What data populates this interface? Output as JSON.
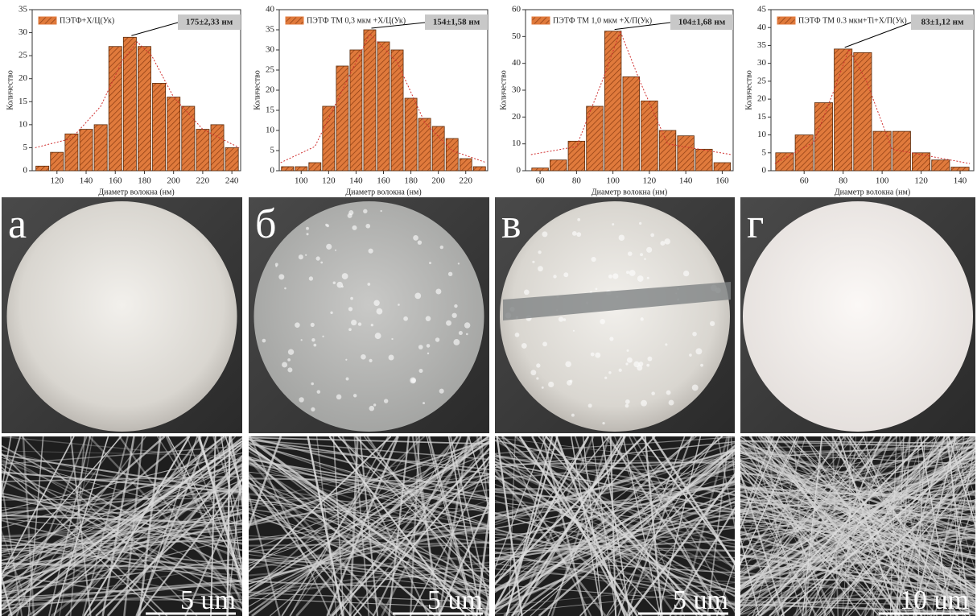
{
  "chart_data": [
    {
      "type": "histogram",
      "x_label": "Диаметр волокна (нм)",
      "y_label": "Количество",
      "annotation": "175±2,33 нм",
      "bins": [
        105,
        115,
        125,
        135,
        145,
        155,
        165,
        175,
        185,
        195,
        205,
        215,
        225,
        235,
        245
      ],
      "series": [
        {
          "name": "ПЭТФ+Х/Ц(Ук)",
          "color": "#e07a3c",
          "values": [
            1,
            4,
            8,
            9,
            10,
            27,
            29,
            27,
            19,
            16,
            14,
            9,
            10,
            5
          ]
        }
      ],
      "fit": {
        "color": "#d03030",
        "x": [
          105,
          130,
          150,
          165,
          175,
          185,
          200,
          220,
          245
        ],
        "y": [
          5,
          7,
          14,
          24,
          28,
          25,
          16,
          9,
          5
        ]
      },
      "xlim": [
        103,
        246
      ],
      "xticks": [
        120,
        140,
        160,
        180,
        200,
        220,
        240
      ],
      "ylim": [
        0,
        35
      ],
      "yticks": [
        0,
        5,
        10,
        15,
        20,
        25,
        30,
        35
      ]
    },
    {
      "type": "histogram",
      "x_label": "Диаметр волокна (нм)",
      "y_label": "Количество",
      "annotation": "154±1,58 нм",
      "bins": [
        85,
        95,
        105,
        115,
        125,
        135,
        145,
        155,
        165,
        175,
        185,
        195,
        205,
        215,
        225,
        235
      ],
      "series": [
        {
          "name": "ПЭТФ ТМ 0,3 мкм +Х/Ц(Ук)",
          "color": "#e07a3c",
          "values": [
            1,
            1,
            2,
            16,
            26,
            30,
            35,
            32,
            30,
            18,
            13,
            11,
            8,
            3,
            1
          ]
        }
      ],
      "fit": {
        "color": "#d03030",
        "x": [
          85,
          110,
          130,
          150,
          170,
          190,
          210,
          235
        ],
        "y": [
          2,
          6,
          20,
          34,
          27,
          12,
          5,
          2
        ]
      },
      "xlim": [
        84,
        236
      ],
      "xticks": [
        100,
        120,
        140,
        160,
        180,
        200,
        220
      ],
      "ylim": [
        0,
        40
      ],
      "yticks": [
        0,
        5,
        10,
        15,
        20,
        25,
        30,
        35,
        40
      ]
    },
    {
      "type": "histogram",
      "x_label": "Диаметр волокна (нм)",
      "y_label": "Количество",
      "annotation": "104±1,68 нм",
      "bins": [
        55,
        65,
        75,
        85,
        95,
        105,
        115,
        125,
        135,
        145,
        155,
        165
      ],
      "series": [
        {
          "name": "ПЭТФ ТМ  1,0 мкм +Х/П(Ук)",
          "color": "#e07a3c",
          "values": [
            1,
            4,
            11,
            24,
            52,
            35,
            26,
            15,
            13,
            8,
            3
          ]
        }
      ],
      "fit": {
        "color": "#d03030",
        "x": [
          55,
          80,
          95,
          104,
          115,
          130,
          165
        ],
        "y": [
          6,
          9,
          35,
          52,
          33,
          10,
          6
        ]
      },
      "xlim": [
        52,
        166
      ],
      "xticks": [
        60,
        80,
        100,
        120,
        140,
        160
      ],
      "ylim": [
        0,
        60
      ],
      "yticks": [
        0,
        10,
        20,
        30,
        40,
        50,
        60
      ]
    },
    {
      "type": "histogram",
      "x_label": "Диаметр волокна (нм)",
      "y_label": "Количество",
      "annotation": "83±1,12 нм",
      "bins": [
        45,
        55,
        65,
        75,
        85,
        95,
        105,
        115,
        125,
        135,
        145
      ],
      "series": [
        {
          "name": "ПЭТФ ТМ 0.3 мкм+Ti+Х/П(Ук)",
          "color": "#e07a3c",
          "values": [
            5,
            10,
            19,
            34,
            33,
            11,
            11,
            5,
            3,
            1
          ]
        }
      ],
      "fit": {
        "color": "#d03030",
        "x": [
          45,
          65,
          75,
          83,
          92,
          105,
          145
        ],
        "y": [
          2,
          8,
          22,
          34,
          25,
          6,
          2
        ]
      },
      "xlim": [
        43,
        147
      ],
      "xticks": [
        60,
        80,
        100,
        120,
        140
      ],
      "ylim": [
        0,
        45
      ],
      "yticks": [
        0,
        5,
        10,
        15,
        20,
        25,
        30,
        35,
        40,
        45
      ]
    }
  ],
  "panels": [
    {
      "label": "а",
      "scale_bar": "5 um"
    },
    {
      "label": "б",
      "scale_bar": "5 um"
    },
    {
      "label": "в",
      "scale_bar": "5 um"
    },
    {
      "label": "г",
      "scale_bar": "10 um"
    }
  ]
}
